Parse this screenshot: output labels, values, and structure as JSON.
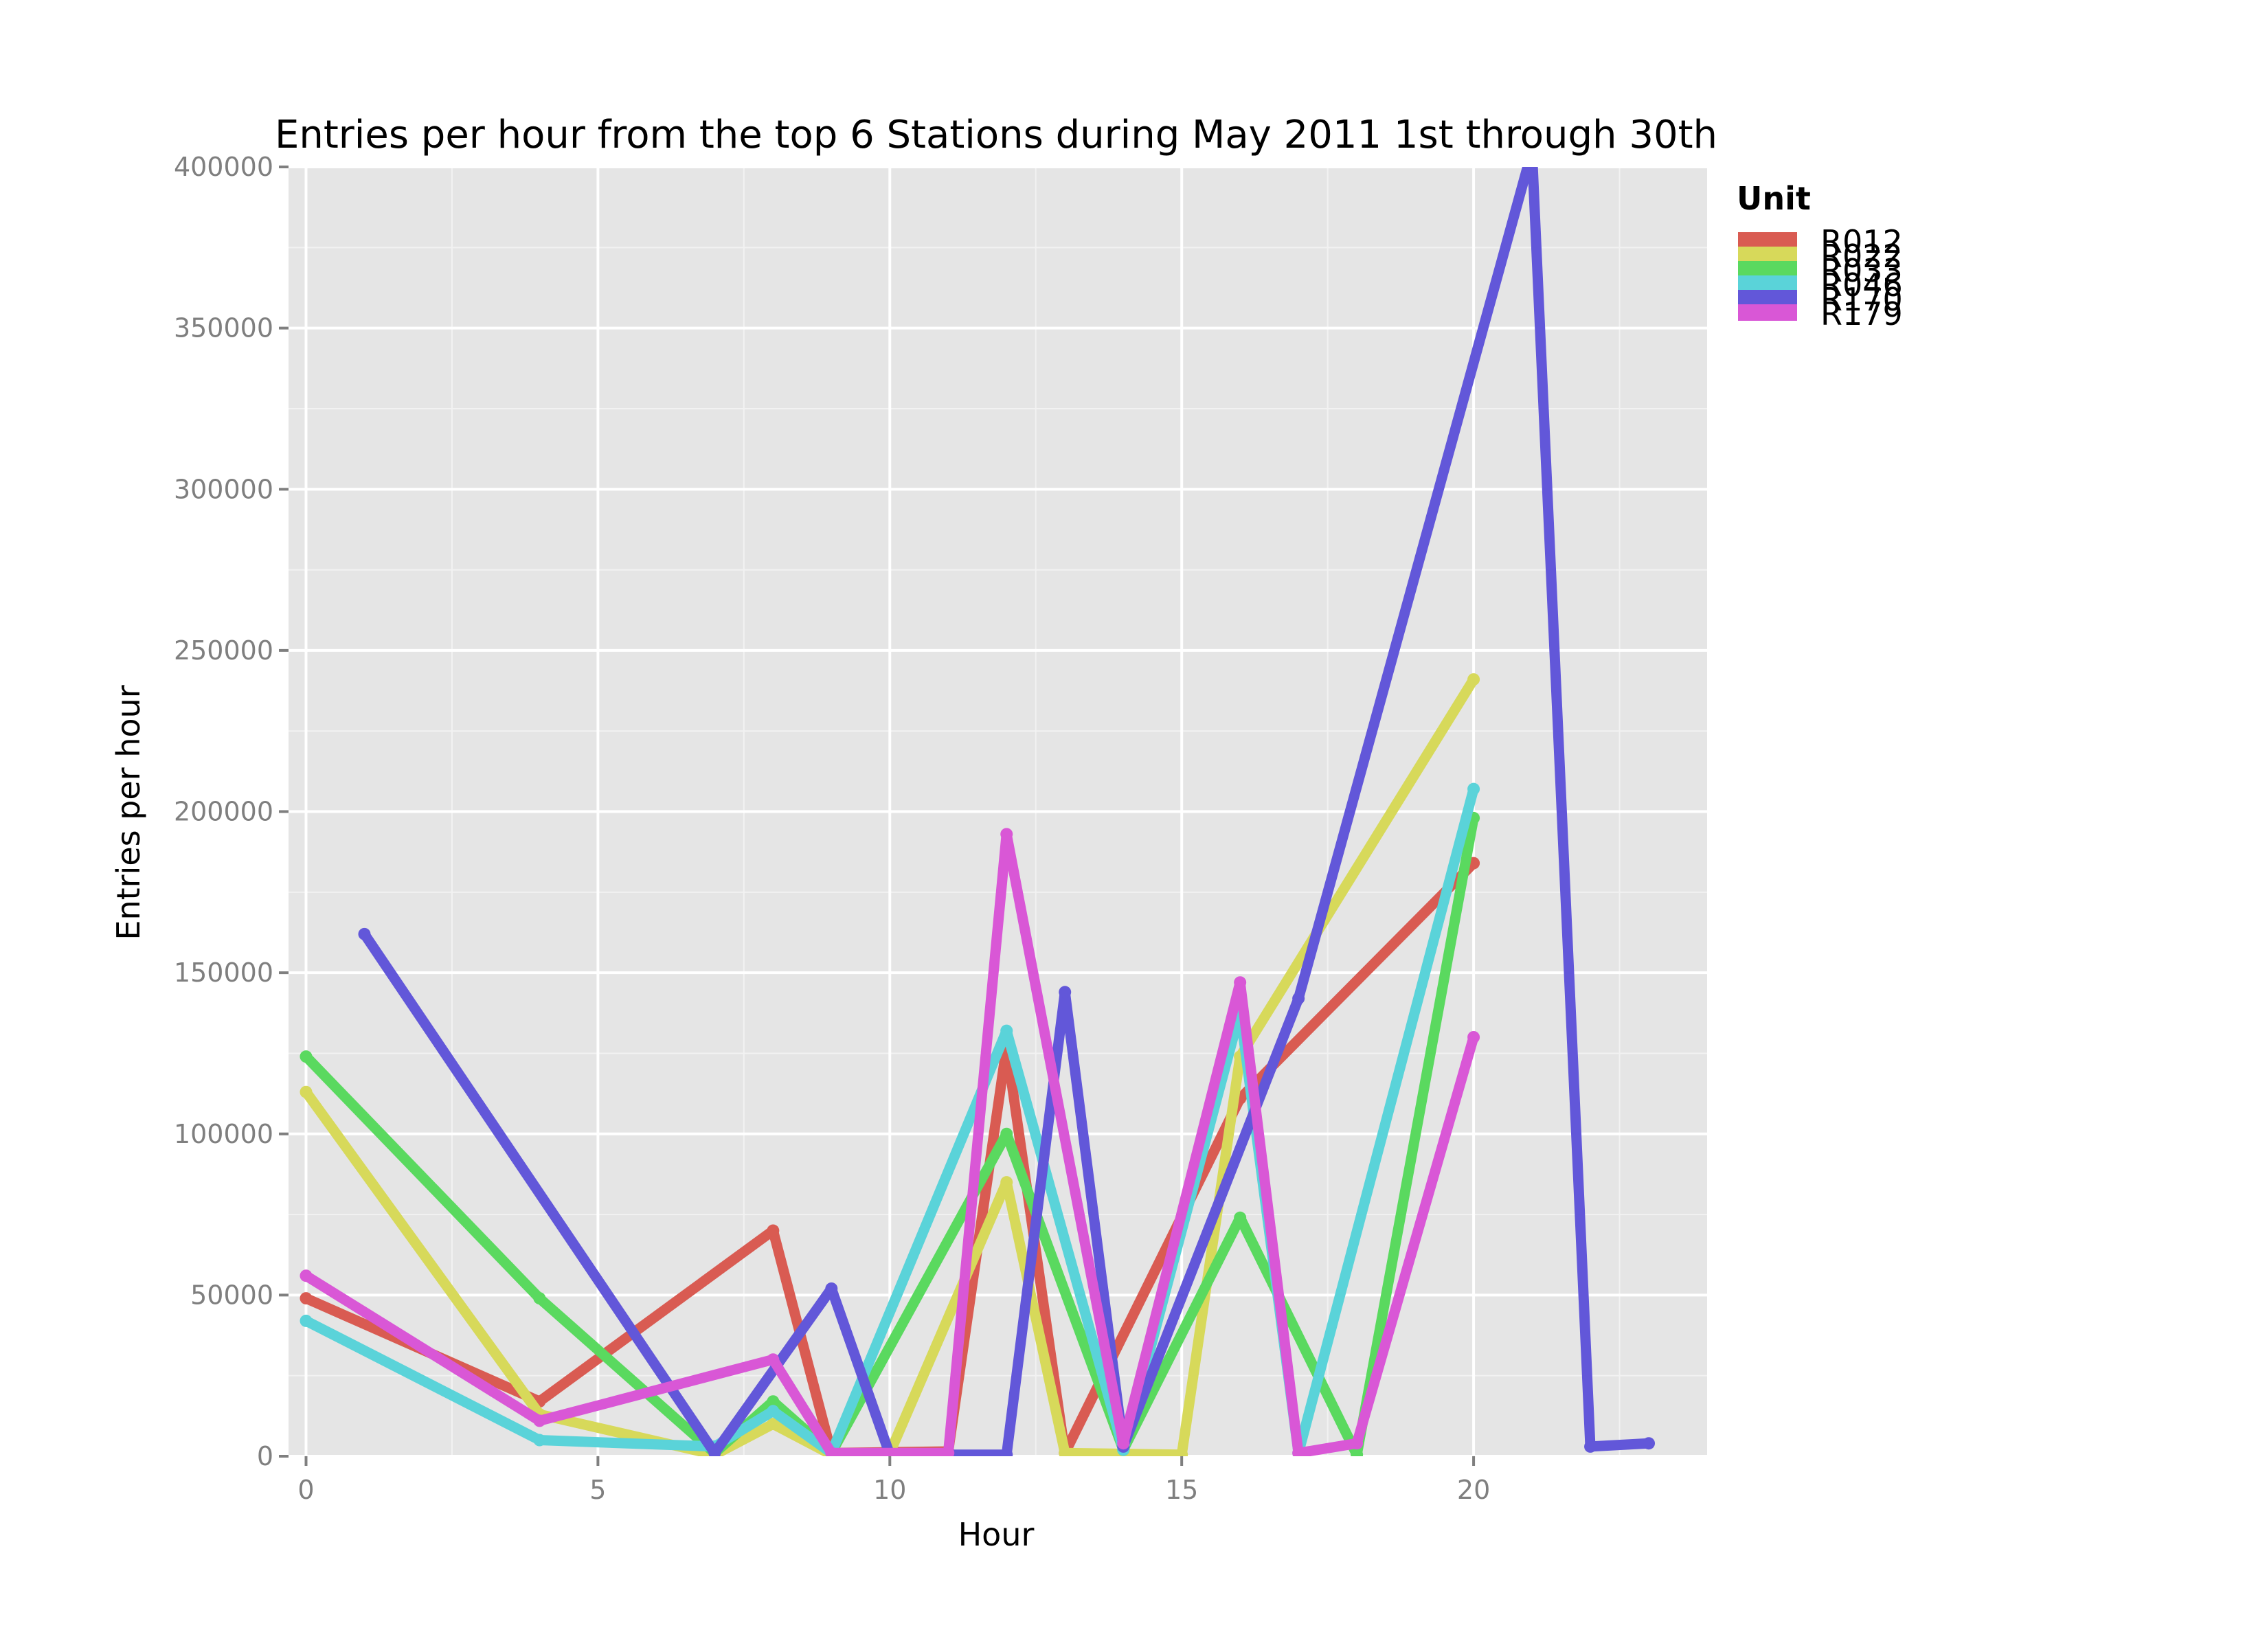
{
  "chart_data": {
    "type": "line",
    "title": "Entries per hour from the top 6 Stations during May 2011 1st through 30th",
    "xlabel": "Hour",
    "ylabel": "Entries per hour",
    "xlim": [
      -0.3,
      24
    ],
    "ylim": [
      0,
      400000
    ],
    "x_ticks": [
      0,
      5,
      10,
      15,
      20
    ],
    "y_ticks": [
      0,
      50000,
      100000,
      150000,
      200000,
      250000,
      300000,
      350000,
      400000
    ],
    "grid": true,
    "legend": {
      "title": "Unit",
      "placement": "right"
    },
    "series": [
      {
        "name": "R012",
        "color": "#d95b52",
        "points": [
          [
            0,
            49000
          ],
          [
            4,
            17000
          ],
          [
            8,
            70000
          ],
          [
            9,
            1000
          ],
          [
            11,
            1500
          ],
          [
            12,
            127000
          ],
          [
            13,
            1000
          ],
          [
            16,
            111000
          ],
          [
            20,
            184000
          ]
        ]
      },
      {
        "name": "R022",
        "color": "#d7d95a",
        "points": [
          [
            0,
            113000
          ],
          [
            4,
            13000
          ],
          [
            7,
            500
          ],
          [
            8,
            10000
          ],
          [
            9,
            500
          ],
          [
            10,
            1000
          ],
          [
            12,
            85000
          ],
          [
            13,
            1000
          ],
          [
            15,
            500
          ],
          [
            16,
            124000
          ],
          [
            20,
            241000
          ]
        ]
      },
      {
        "name": "R033",
        "color": "#5ad95f",
        "points": [
          [
            0,
            124000
          ],
          [
            4,
            49000
          ],
          [
            7,
            1000
          ],
          [
            8,
            17000
          ],
          [
            9,
            1000
          ],
          [
            12,
            100000
          ],
          [
            14,
            2000
          ],
          [
            16,
            74000
          ],
          [
            18,
            500
          ],
          [
            20,
            198000
          ]
        ]
      },
      {
        "name": "R046",
        "color": "#5ad3d9",
        "points": [
          [
            0,
            42000
          ],
          [
            4,
            5000
          ],
          [
            7,
            3000
          ],
          [
            8,
            14000
          ],
          [
            9,
            1000
          ],
          [
            12,
            132000
          ],
          [
            14,
            2000
          ],
          [
            16,
            138000
          ],
          [
            17,
            1000
          ],
          [
            20,
            207000
          ]
        ]
      },
      {
        "name": "R170",
        "color": "#6257d9",
        "points": [
          [
            1,
            162000
          ],
          [
            7,
            1000
          ],
          [
            9,
            52000
          ],
          [
            10,
            500
          ],
          [
            12,
            500
          ],
          [
            13,
            144000
          ],
          [
            14,
            3000
          ],
          [
            17,
            142000
          ],
          [
            21,
            405000
          ],
          [
            22,
            3000
          ],
          [
            23,
            4000
          ]
        ]
      },
      {
        "name": "R179",
        "color": "#d957d6",
        "points": [
          [
            0,
            56000
          ],
          [
            4,
            11000
          ],
          [
            8,
            30000
          ],
          [
            9,
            1000
          ],
          [
            11,
            1000
          ],
          [
            12,
            193000
          ],
          [
            14,
            4000
          ],
          [
            16,
            147000
          ],
          [
            17,
            1000
          ],
          [
            18,
            4000
          ],
          [
            20,
            130000
          ]
        ]
      }
    ]
  }
}
